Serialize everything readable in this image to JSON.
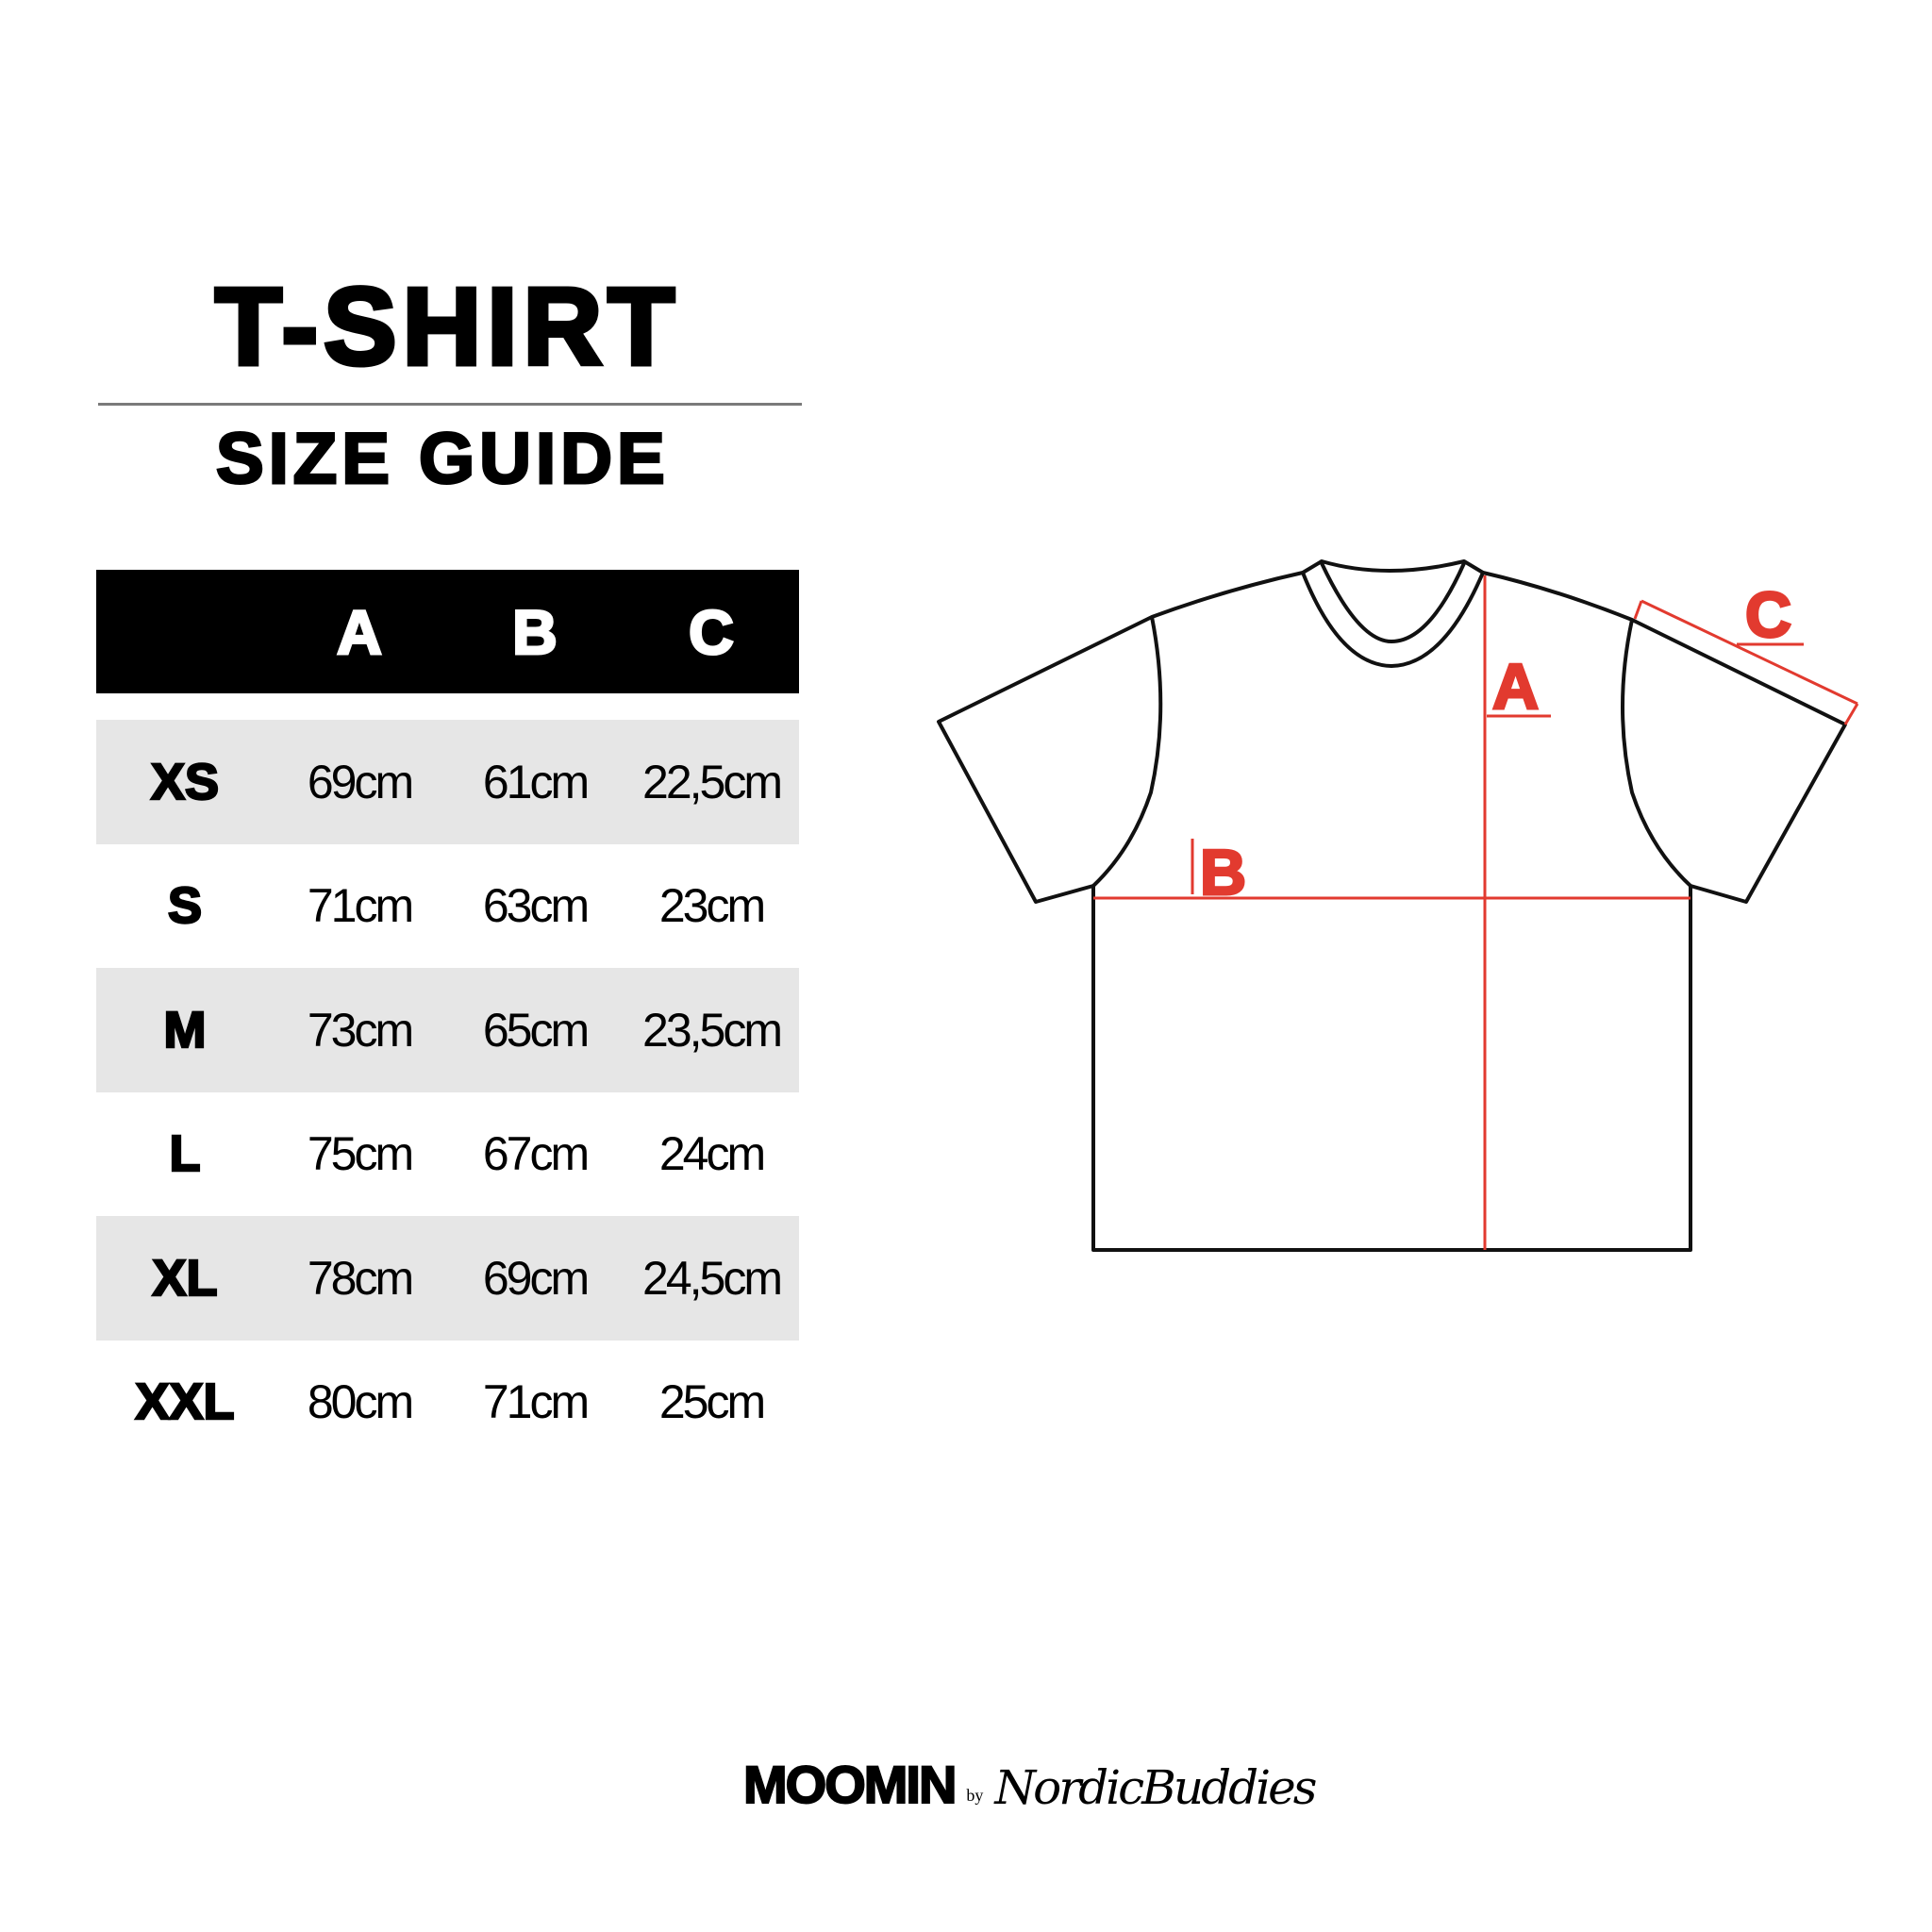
{
  "title": "T-SHIRT",
  "subtitle": "SIZE GUIDE",
  "table": {
    "headers": [
      "",
      "A",
      "B",
      "C"
    ],
    "rows": [
      {
        "size": "XS",
        "a": "69cm",
        "b": "61cm",
        "c": "22,5cm"
      },
      {
        "size": "S",
        "a": "71cm",
        "b": "63cm",
        "c": "23cm"
      },
      {
        "size": "M",
        "a": "73cm",
        "b": "65cm",
        "c": "23,5cm"
      },
      {
        "size": "L",
        "a": "75cm",
        "b": "67cm",
        "c": "24cm"
      },
      {
        "size": "XL",
        "a": "78cm",
        "b": "69cm",
        "c": "24,5cm"
      },
      {
        "size": "XXL",
        "a": "80cm",
        "b": "71cm",
        "c": "25cm"
      }
    ]
  },
  "diagram": {
    "labels": {
      "a": "A",
      "b": "B",
      "c": "C"
    },
    "measure_color": "#e23a2f",
    "outline_color": "#111111"
  },
  "logo": {
    "brand": "MOOMIN",
    "by": "by",
    "partner": "NordicBuddies"
  }
}
